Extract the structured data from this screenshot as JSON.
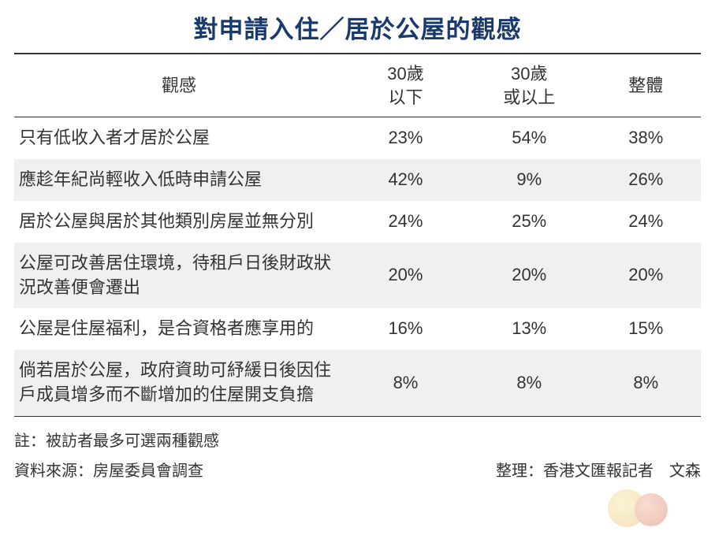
{
  "title": "對申請入住／居於公屋的觀感",
  "table": {
    "columns": [
      "觀感",
      "30歲\n以下",
      "30歲\n或以上",
      "整體"
    ],
    "rows": [
      [
        "只有低收入者才居於公屋",
        "23%",
        "54%",
        "38%"
      ],
      [
        "應趁年紀尚輕收入低時申請公屋",
        "42%",
        "9%",
        "26%"
      ],
      [
        "居於公屋與居於其他類別房屋並無分別",
        "24%",
        "25%",
        "24%"
      ],
      [
        "公屋可改善居住環境，待租戶日後財政狀況改善便會遷出",
        "20%",
        "20%",
        "20%"
      ],
      [
        "公屋是住屋福利，是合資格者應享用的",
        "16%",
        "13%",
        "15%"
      ],
      [
        "倘若居於公屋，政府資助可紓緩日後因住戶成員增多而不斷增加的住屋開支負擔",
        "8%",
        "8%",
        "8%"
      ]
    ],
    "column_widths": [
      "48%",
      "18%",
      "18%",
      "16%"
    ],
    "header_border_top": "#333333",
    "header_border_bottom": "#333333",
    "row_alt_bg": "#f0f0f0",
    "text_color": "#333333",
    "title_color": "#1a3a6e",
    "body_fontsize": 22,
    "title_fontsize": 31
  },
  "footer": {
    "note": "註：被訪者最多可選兩種觀感",
    "source": "資料來源：房屋委員會調查",
    "compiler": "整理：香港文匯報記者　文森"
  }
}
